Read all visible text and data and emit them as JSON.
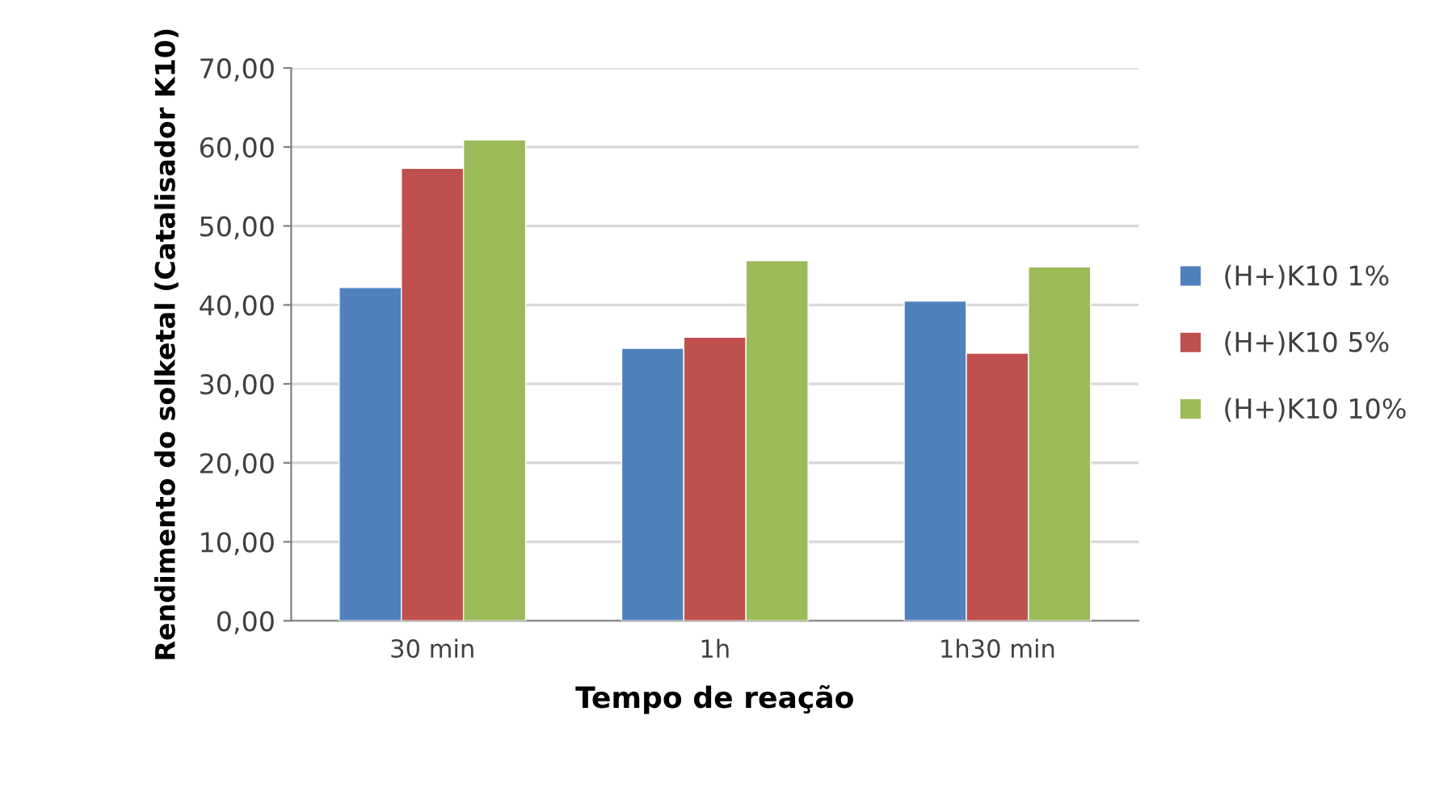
{
  "chart_data": {
    "type": "bar",
    "xlabel": "Tempo de reação",
    "ylabel": "Rendimento do solketal (Catalisador K10)",
    "categories": [
      "30 min",
      "1h",
      "1h30 min"
    ],
    "series": [
      {
        "name": "(H+)K10 1%",
        "color": "#4f81bd",
        "values": [
          42.2,
          34.5,
          40.5
        ]
      },
      {
        "name": "(H+)K10 5%",
        "color": "#c0504d",
        "values": [
          57.3,
          35.9,
          33.9
        ]
      },
      {
        "name": "(H+)K10 10%",
        "color": "#9bbb59",
        "values": [
          60.9,
          45.6,
          44.8
        ]
      }
    ],
    "ylim": [
      0,
      70
    ],
    "yticks": [
      {
        "value": 0,
        "label": "0,00"
      },
      {
        "value": 10,
        "label": "10,00"
      },
      {
        "value": 20,
        "label": "20,00"
      },
      {
        "value": 30,
        "label": "30,00"
      },
      {
        "value": 40,
        "label": "40,00"
      },
      {
        "value": 50,
        "label": "50,00"
      },
      {
        "value": 60,
        "label": "60,00"
      },
      {
        "value": 70,
        "label": "70,00"
      }
    ],
    "grid": "y",
    "legend": "right"
  }
}
